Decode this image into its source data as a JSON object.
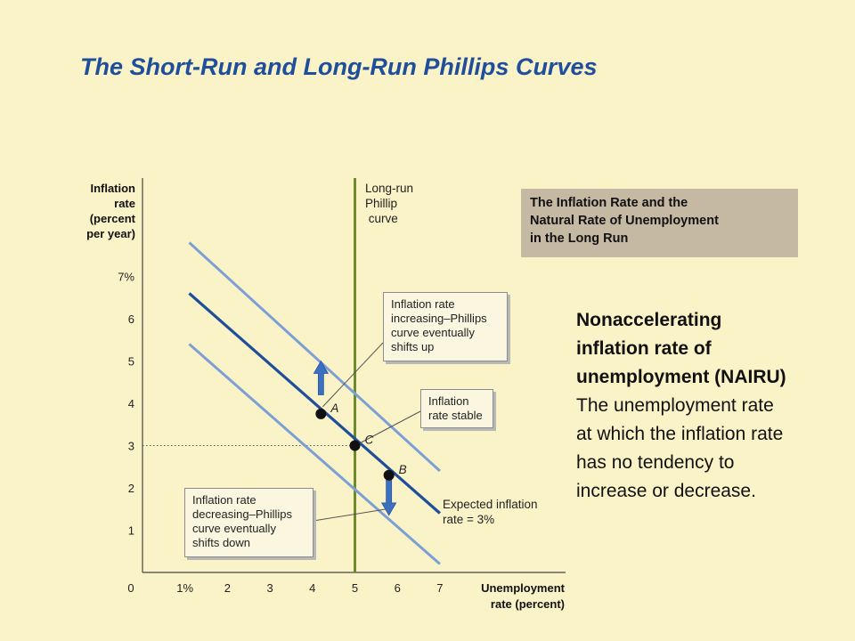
{
  "slide": {
    "title": "The Short-Run and Long-Run Phillips Curves"
  },
  "info_box": {
    "text": "The Inflation Rate and the\nNatural Rate of Unemployment\nin the Long Run"
  },
  "definition": {
    "term": "Nonaccelerating\ninflation rate of\nunemployment (NAIRU)",
    "text": "The unemployment rate\nat which the inflation rate\nhas no tendency to\nincrease or decrease."
  },
  "callouts": {
    "increasing": "Inflation rate\nincreasing–Phillips\ncurve eventually\nshifts up",
    "stable": "Inflation\nrate stable",
    "decreasing": "Inflation rate\ndecreasing–Phillips\ncurve eventually\nshifts down"
  },
  "colors": {
    "background": "#FAF3C8",
    "title": "#1F4E9A",
    "short_run_curve": "#1F4E9A",
    "shifted_curves": "#7C9FD6",
    "long_run_curve": "#6E8B2B",
    "arrows": "#3B6FC0"
  },
  "chart_data": {
    "type": "line",
    "title": "",
    "xlabel": "Unemployment rate (percent)",
    "ylabel": "Inflation rate (percent per year)",
    "xlim": [
      0,
      7.5
    ],
    "ylim": [
      0,
      7.5
    ],
    "x_ticks": [
      {
        "value": 0,
        "label": "0"
      },
      {
        "value": 1,
        "label": "1%"
      },
      {
        "value": 2,
        "label": "2"
      },
      {
        "value": 3,
        "label": "3"
      },
      {
        "value": 4,
        "label": "4"
      },
      {
        "value": 5,
        "label": "5"
      },
      {
        "value": 6,
        "label": "6"
      },
      {
        "value": 7,
        "label": "7"
      }
    ],
    "y_ticks": [
      {
        "value": 1,
        "label": "1"
      },
      {
        "value": 2,
        "label": "2"
      },
      {
        "value": 3,
        "label": "3"
      },
      {
        "value": 4,
        "label": "4"
      },
      {
        "value": 5,
        "label": "5"
      },
      {
        "value": 6,
        "label": "6"
      },
      {
        "value": 7,
        "label": "7%"
      }
    ],
    "grid": false,
    "series": [
      {
        "key": "upper",
        "name": "",
        "x": [
          1.1,
          7.0
        ],
        "y": [
          7.8,
          2.4
        ]
      },
      {
        "key": "expected",
        "name": "Expected inflation rate = 3%",
        "x": [
          1.1,
          7.0
        ],
        "y": [
          6.6,
          1.4
        ]
      },
      {
        "key": "lower",
        "name": "",
        "x": [
          1.1,
          7.0
        ],
        "y": [
          5.4,
          0.2
        ]
      }
    ],
    "long_run_curve": {
      "x": 5,
      "label": "Long-run Phillips curve"
    },
    "reference_line": {
      "y": 3,
      "x_from": 0,
      "x_to": 5
    },
    "points": [
      {
        "label": "A",
        "x": 4.2,
        "y": 3.75
      },
      {
        "label": "C",
        "x": 5.0,
        "y": 3.0
      },
      {
        "label": "B",
        "x": 5.8,
        "y": 2.3
      }
    ],
    "arrows": [
      {
        "direction": "up",
        "x": 4.2,
        "from": 4.2,
        "to": 5.0
      },
      {
        "direction": "down",
        "x": 5.8,
        "from": 2.2,
        "to": 1.35
      }
    ]
  }
}
